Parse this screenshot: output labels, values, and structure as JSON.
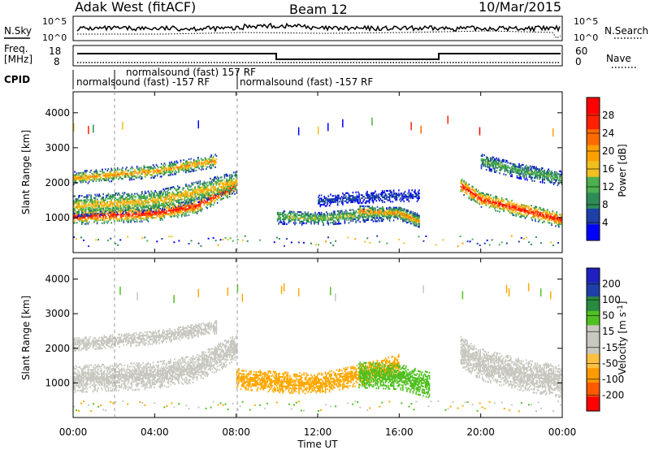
{
  "header": {
    "radar": "Adak West (fitACF)",
    "beam": "Beam 12",
    "date": "10/Mar/2015"
  },
  "noise_panel": {
    "left_label": "N.Sky",
    "right_label": "N.Search",
    "left_ticks": [
      "10^5",
      "10^0"
    ],
    "right_ticks": [
      "10^5",
      "10^0"
    ]
  },
  "freq_panel": {
    "left_label_top": "Freq.",
    "left_label_bottom": "[MHz]",
    "right_label": "Nave",
    "left_ticks": [
      "18",
      "8"
    ],
    "right_ticks": [
      "60",
      "0"
    ]
  },
  "cpid_panel": {
    "label": "CPID",
    "entries": [
      {
        "text": "normalsound (fast) -157 RF",
        "start_hour": 0.0
      },
      {
        "text": "normalsound (fast) 157 RF",
        "start_hour": 2.0
      },
      {
        "text": "normalsound (fast) -157 RF",
        "start_hour": 8.0
      }
    ]
  },
  "time_axis": {
    "label": "Time UT",
    "ticks": [
      "00:00",
      "04:00",
      "08:00",
      "12:00",
      "16:00",
      "20:00",
      "00:00"
    ]
  },
  "colors": {
    "power_scale": [
      "#0000ff",
      "#1f3fa8",
      "#2e8b57",
      "#4caf50",
      "#f0c020",
      "#ffa000",
      "#ff6a00",
      "#ff2000",
      "#ff0000"
    ],
    "velocity_scale": [
      "#ff0000",
      "#ff5a00",
      "#ff9a00",
      "#ffc040",
      "#c8c8c0",
      "#c8c8c0",
      "#50c020",
      "#2a8a40",
      "#1f3fa8",
      "#2020c0"
    ]
  },
  "chart_data": [
    {
      "type": "heatmap",
      "title": "Power",
      "ylabel": "Slant Range [km]",
      "xlabel": "Time UT",
      "xlim": [
        0,
        24
      ],
      "ylim": [
        0,
        4600
      ],
      "y_ticks": [
        "1000",
        "2000",
        "3000",
        "4000"
      ],
      "colorbar": {
        "label": "Power [dB]",
        "ticks": [
          "28",
          "24",
          "20",
          "16",
          "12",
          "8",
          "4"
        ],
        "range": [
          0,
          32
        ]
      },
      "bands": [
        {
          "t": [
            0.0,
            2.0,
            4.0,
            6.0,
            7.0,
            8.0
          ],
          "center": [
            1000,
            1050,
            1100,
            1300,
            1600,
            1900
          ],
          "width": 220,
          "power": 28
        },
        {
          "t": [
            0.0,
            2.0,
            4.0,
            6.0,
            7.0,
            8.0
          ],
          "center": [
            1300,
            1380,
            1450,
            1700,
            1850,
            2000
          ],
          "width": 300,
          "power": 18
        },
        {
          "t": [
            0.0,
            2.0,
            4.0,
            6.0,
            7.0
          ],
          "center": [
            2100,
            2200,
            2300,
            2500,
            2600
          ],
          "width": 180,
          "power": 20
        },
        {
          "t": [
            10.0,
            12.0,
            14.0,
            16.0,
            17.0
          ],
          "center": [
            1000,
            950,
            1050,
            1100,
            900
          ],
          "width": 200,
          "power": 14
        },
        {
          "t": [
            12.0,
            14.0,
            16.0,
            17.0
          ],
          "center": [
            1450,
            1550,
            1600,
            1600
          ],
          "width": 160,
          "power": 6
        },
        {
          "t": [
            14.0,
            16.0,
            17.0
          ],
          "center": [
            1150,
            1100,
            850
          ],
          "width": 160,
          "power": 22
        },
        {
          "t": [
            19.0,
            20.0,
            22.0,
            24.0
          ],
          "center": [
            1900,
            1500,
            1200,
            900
          ],
          "width": 220,
          "power": 28
        },
        {
          "t": [
            20.0,
            22.0,
            24.0
          ],
          "center": [
            2600,
            2300,
            2100
          ],
          "width": 220,
          "power": 12
        }
      ]
    },
    {
      "type": "heatmap",
      "title": "Velocity",
      "ylabel": "Slant Range [km]",
      "xlabel": "Time UT",
      "xlim": [
        0,
        24
      ],
      "ylim": [
        0,
        4600
      ],
      "y_ticks": [
        "1000",
        "2000",
        "3000",
        "4000"
      ],
      "colorbar": {
        "label": "Velocity [m s^-1]",
        "ticks": [
          "200",
          "100",
          "50",
          "15",
          "-15",
          "-50",
          "-100",
          "-200"
        ],
        "range": [
          -250,
          250
        ]
      },
      "bands": [
        {
          "t": [
            0.0,
            2.0,
            4.0,
            6.0,
            7.0,
            8.0
          ],
          "center": [
            1100,
            1150,
            1200,
            1400,
            1700,
            2000
          ],
          "width": 400,
          "velocity": 0
        },
        {
          "t": [
            0.0,
            2.0,
            4.0,
            6.0,
            7.0
          ],
          "center": [
            2100,
            2200,
            2300,
            2500,
            2600
          ],
          "width": 200,
          "velocity": 0
        },
        {
          "t": [
            8.0,
            10.0,
            12.0,
            14.0,
            16.0
          ],
          "center": [
            1100,
            1000,
            950,
            1200,
            1500
          ],
          "width": 300,
          "velocity": -60
        },
        {
          "t": [
            14.0,
            16.0,
            17.5
          ],
          "center": [
            1200,
            1150,
            900
          ],
          "width": 360,
          "velocity": 60
        },
        {
          "t": [
            19.0,
            20.0,
            22.0,
            24.0
          ],
          "center": [
            1900,
            1500,
            1200,
            1000
          ],
          "width": 450,
          "velocity": 0
        }
      ]
    }
  ]
}
